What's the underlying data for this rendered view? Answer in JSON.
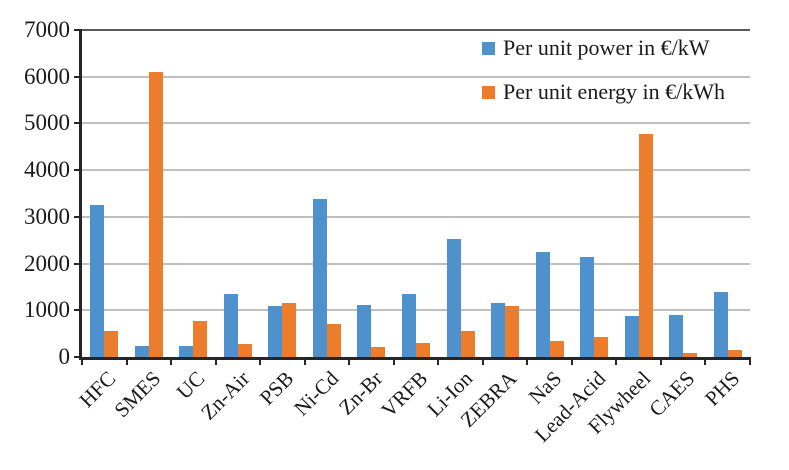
{
  "chart_data": {
    "type": "bar",
    "title": "",
    "xlabel": "",
    "ylabel": "",
    "categories": [
      "HFC",
      "SMES",
      "UC",
      "Zn-Air",
      "PSB",
      "Ni-Cd",
      "Zn-Br",
      "VRFB",
      "Li-Ion",
      "ZEBRA",
      "NaS",
      "Lead-Acid",
      "Flywheel",
      "CAES",
      "PHS"
    ],
    "series": [
      {
        "name": "Per unit power in €/kW",
        "color": "#4e91cc",
        "values": [
          3250,
          230,
          230,
          1340,
          1100,
          3380,
          1120,
          1350,
          2520,
          1160,
          2250,
          2140,
          870,
          890,
          1400
        ]
      },
      {
        "name": "Per unit energy in €/kWh",
        "color": "#ec7d2d",
        "values": [
          550,
          6100,
          770,
          270,
          1150,
          700,
          220,
          310,
          550,
          1090,
          340,
          420,
          4780,
          80,
          140
        ]
      }
    ],
    "ylim": [
      0,
      7000
    ],
    "ytick_step": 1000,
    "yticks": [
      0,
      1000,
      2000,
      3000,
      4000,
      5000,
      6000,
      7000
    ],
    "grid": true,
    "gridline_color": "#bfbfbf",
    "axis_color": "#262626",
    "legend_position": "top-right"
  }
}
